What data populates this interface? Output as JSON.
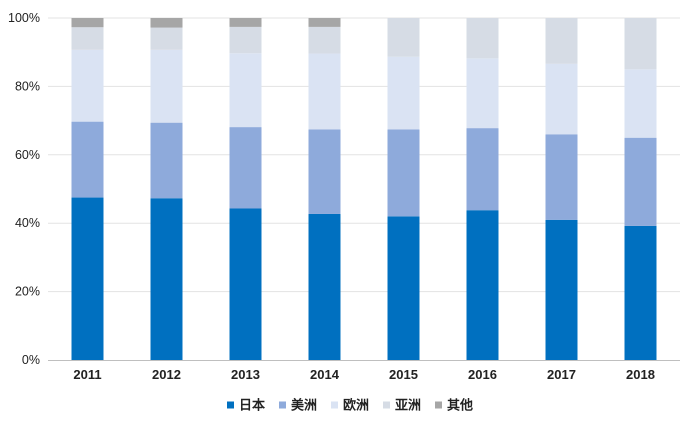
{
  "chart_data": {
    "type": "bar",
    "stacked": true,
    "categories": [
      "2011",
      "2012",
      "2013",
      "2014",
      "2015",
      "2016",
      "2017",
      "2018"
    ],
    "series": [
      {
        "name": "日本",
        "color": "#0070c0",
        "values": [
          47.5,
          47.3,
          44.3,
          42.7,
          42.0,
          43.8,
          41.0,
          39.2
        ]
      },
      {
        "name": "美洲",
        "color": "#8eaadb",
        "values": [
          22.2,
          22.1,
          23.8,
          24.7,
          25.4,
          24.0,
          25.0,
          25.8
        ]
      },
      {
        "name": "欧洲",
        "color": "#dae3f3",
        "values": [
          21.0,
          21.3,
          21.6,
          22.2,
          21.3,
          20.4,
          20.6,
          20.0
        ]
      },
      {
        "name": "亚洲",
        "color": "#d6dce5",
        "values": [
          6.6,
          6.5,
          7.7,
          7.8,
          11.3,
          11.8,
          13.4,
          15.0
        ]
      },
      {
        "name": "其他",
        "color": "#a6a6a6",
        "values": [
          2.7,
          2.8,
          2.6,
          2.6,
          0.0,
          0.0,
          0.0,
          0.0
        ]
      }
    ],
    "y_ticks": [
      "0%",
      "20%",
      "40%",
      "60%",
      "80%",
      "100%"
    ],
    "ylim": [
      0,
      100
    ],
    "title": "",
    "xlabel": "",
    "ylabel": "",
    "grid": true,
    "legend_position": "bottom"
  }
}
